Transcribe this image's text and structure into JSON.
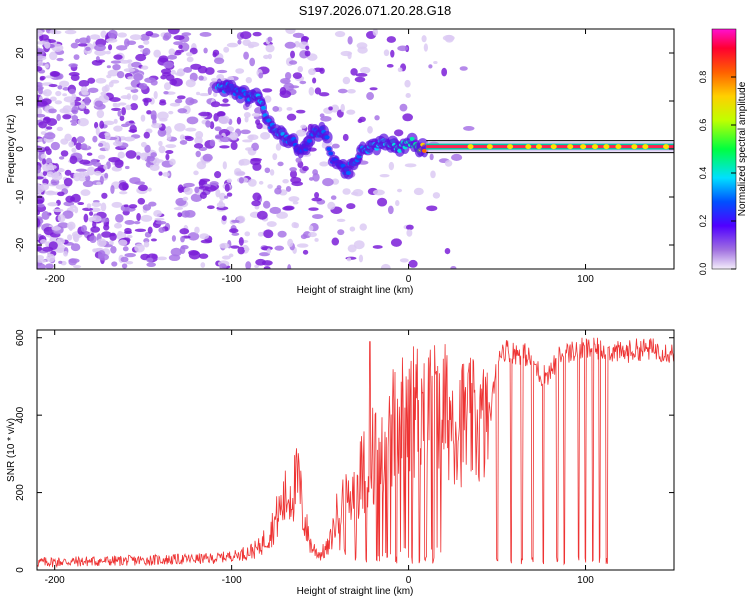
{
  "title": "S197.2026.071.20.28.G18",
  "chart_data": [
    {
      "type": "heatmap",
      "title": "S197.2026.071.20.28.G18",
      "xlabel": "Height of straight line (km)",
      "ylabel": "Frequency (Hz)",
      "xlim": [
        -210,
        150
      ],
      "ylim": [
        -25,
        25
      ],
      "xticks": [
        -200,
        -100,
        0,
        100
      ],
      "yticks": [
        -20,
        -10,
        0,
        10,
        20
      ],
      "colorbar": {
        "label": "Normalized spectral amplitude",
        "range": [
          0,
          1
        ],
        "ticks": [
          0.0,
          0.2,
          0.4,
          0.6,
          0.8
        ],
        "colors": [
          "#f0e8f8",
          "#7a00d6",
          "#0000ff",
          "#00ffff",
          "#00ff00",
          "#ffff00",
          "#ff8000",
          "#ff0000",
          "#ff00c8"
        ]
      },
      "ridge": [
        {
          "x": -108,
          "y": 13,
          "amp": 0.35
        },
        {
          "x": -100,
          "y": 12.5,
          "amp": 0.3
        },
        {
          "x": -92,
          "y": 11,
          "amp": 0.3
        },
        {
          "x": -85,
          "y": 11,
          "amp": 0.35
        },
        {
          "x": -78,
          "y": 5,
          "amp": 0.3
        },
        {
          "x": -72,
          "y": 3,
          "amp": 0.35
        },
        {
          "x": -66,
          "y": 2,
          "amp": 0.3
        },
        {
          "x": -60,
          "y": -1,
          "amp": 0.25
        },
        {
          "x": -55,
          "y": 3,
          "amp": 0.3
        },
        {
          "x": -48,
          "y": 4,
          "amp": 0.3
        },
        {
          "x": -42,
          "y": -3,
          "amp": 0.25
        },
        {
          "x": -35,
          "y": -5,
          "amp": 0.3
        },
        {
          "x": -28,
          "y": -1,
          "amp": 0.3
        },
        {
          "x": -22,
          "y": 0,
          "amp": 0.35
        },
        {
          "x": -15,
          "y": 1,
          "amp": 0.38
        },
        {
          "x": -10,
          "y": 1.5,
          "amp": 0.4
        },
        {
          "x": -5,
          "y": 0,
          "amp": 0.4
        },
        {
          "x": 0,
          "y": 1.5,
          "amp": 0.42
        },
        {
          "x": 5,
          "y": 0.5,
          "amp": 0.45
        },
        {
          "x": 10,
          "y": 0.5,
          "amp": 0.9
        },
        {
          "x": 150,
          "y": 0.5,
          "amp": 0.9
        }
      ]
    },
    {
      "type": "line",
      "xlabel": "Height of straight line (km)",
      "ylabel": "SNR (10 * v/v)",
      "xlim": [
        -210,
        150
      ],
      "ylim": [
        0,
        620
      ],
      "xticks": [
        -200,
        -100,
        0,
        100
      ],
      "yticks": [
        0,
        200,
        400,
        600
      ],
      "color": "#ee3333",
      "series": [
        {
          "name": "SNR",
          "x": [
            -210,
            -150,
            -110,
            -95,
            -85,
            -78,
            -70,
            -62,
            -60,
            -55,
            -50,
            -45,
            -40,
            -32,
            -25,
            -20,
            -15,
            -10,
            -5,
            0,
            5,
            10,
            15,
            20,
            25,
            30,
            35,
            40,
            43,
            47,
            50,
            55,
            60,
            65,
            70,
            75,
            80,
            85,
            90,
            95,
            100,
            110,
            120,
            130,
            140,
            150
          ],
          "y": [
            20,
            25,
            30,
            40,
            55,
            100,
            180,
            230,
            150,
            60,
            40,
            60,
            150,
            200,
            260,
            300,
            330,
            360,
            380,
            400,
            420,
            430,
            420,
            410,
            400,
            385,
            380,
            370,
            380,
            420,
            560,
            570,
            560,
            560,
            540,
            500,
            510,
            550,
            560,
            570,
            570,
            570,
            560,
            570,
            570,
            560
          ]
        }
      ]
    }
  ]
}
